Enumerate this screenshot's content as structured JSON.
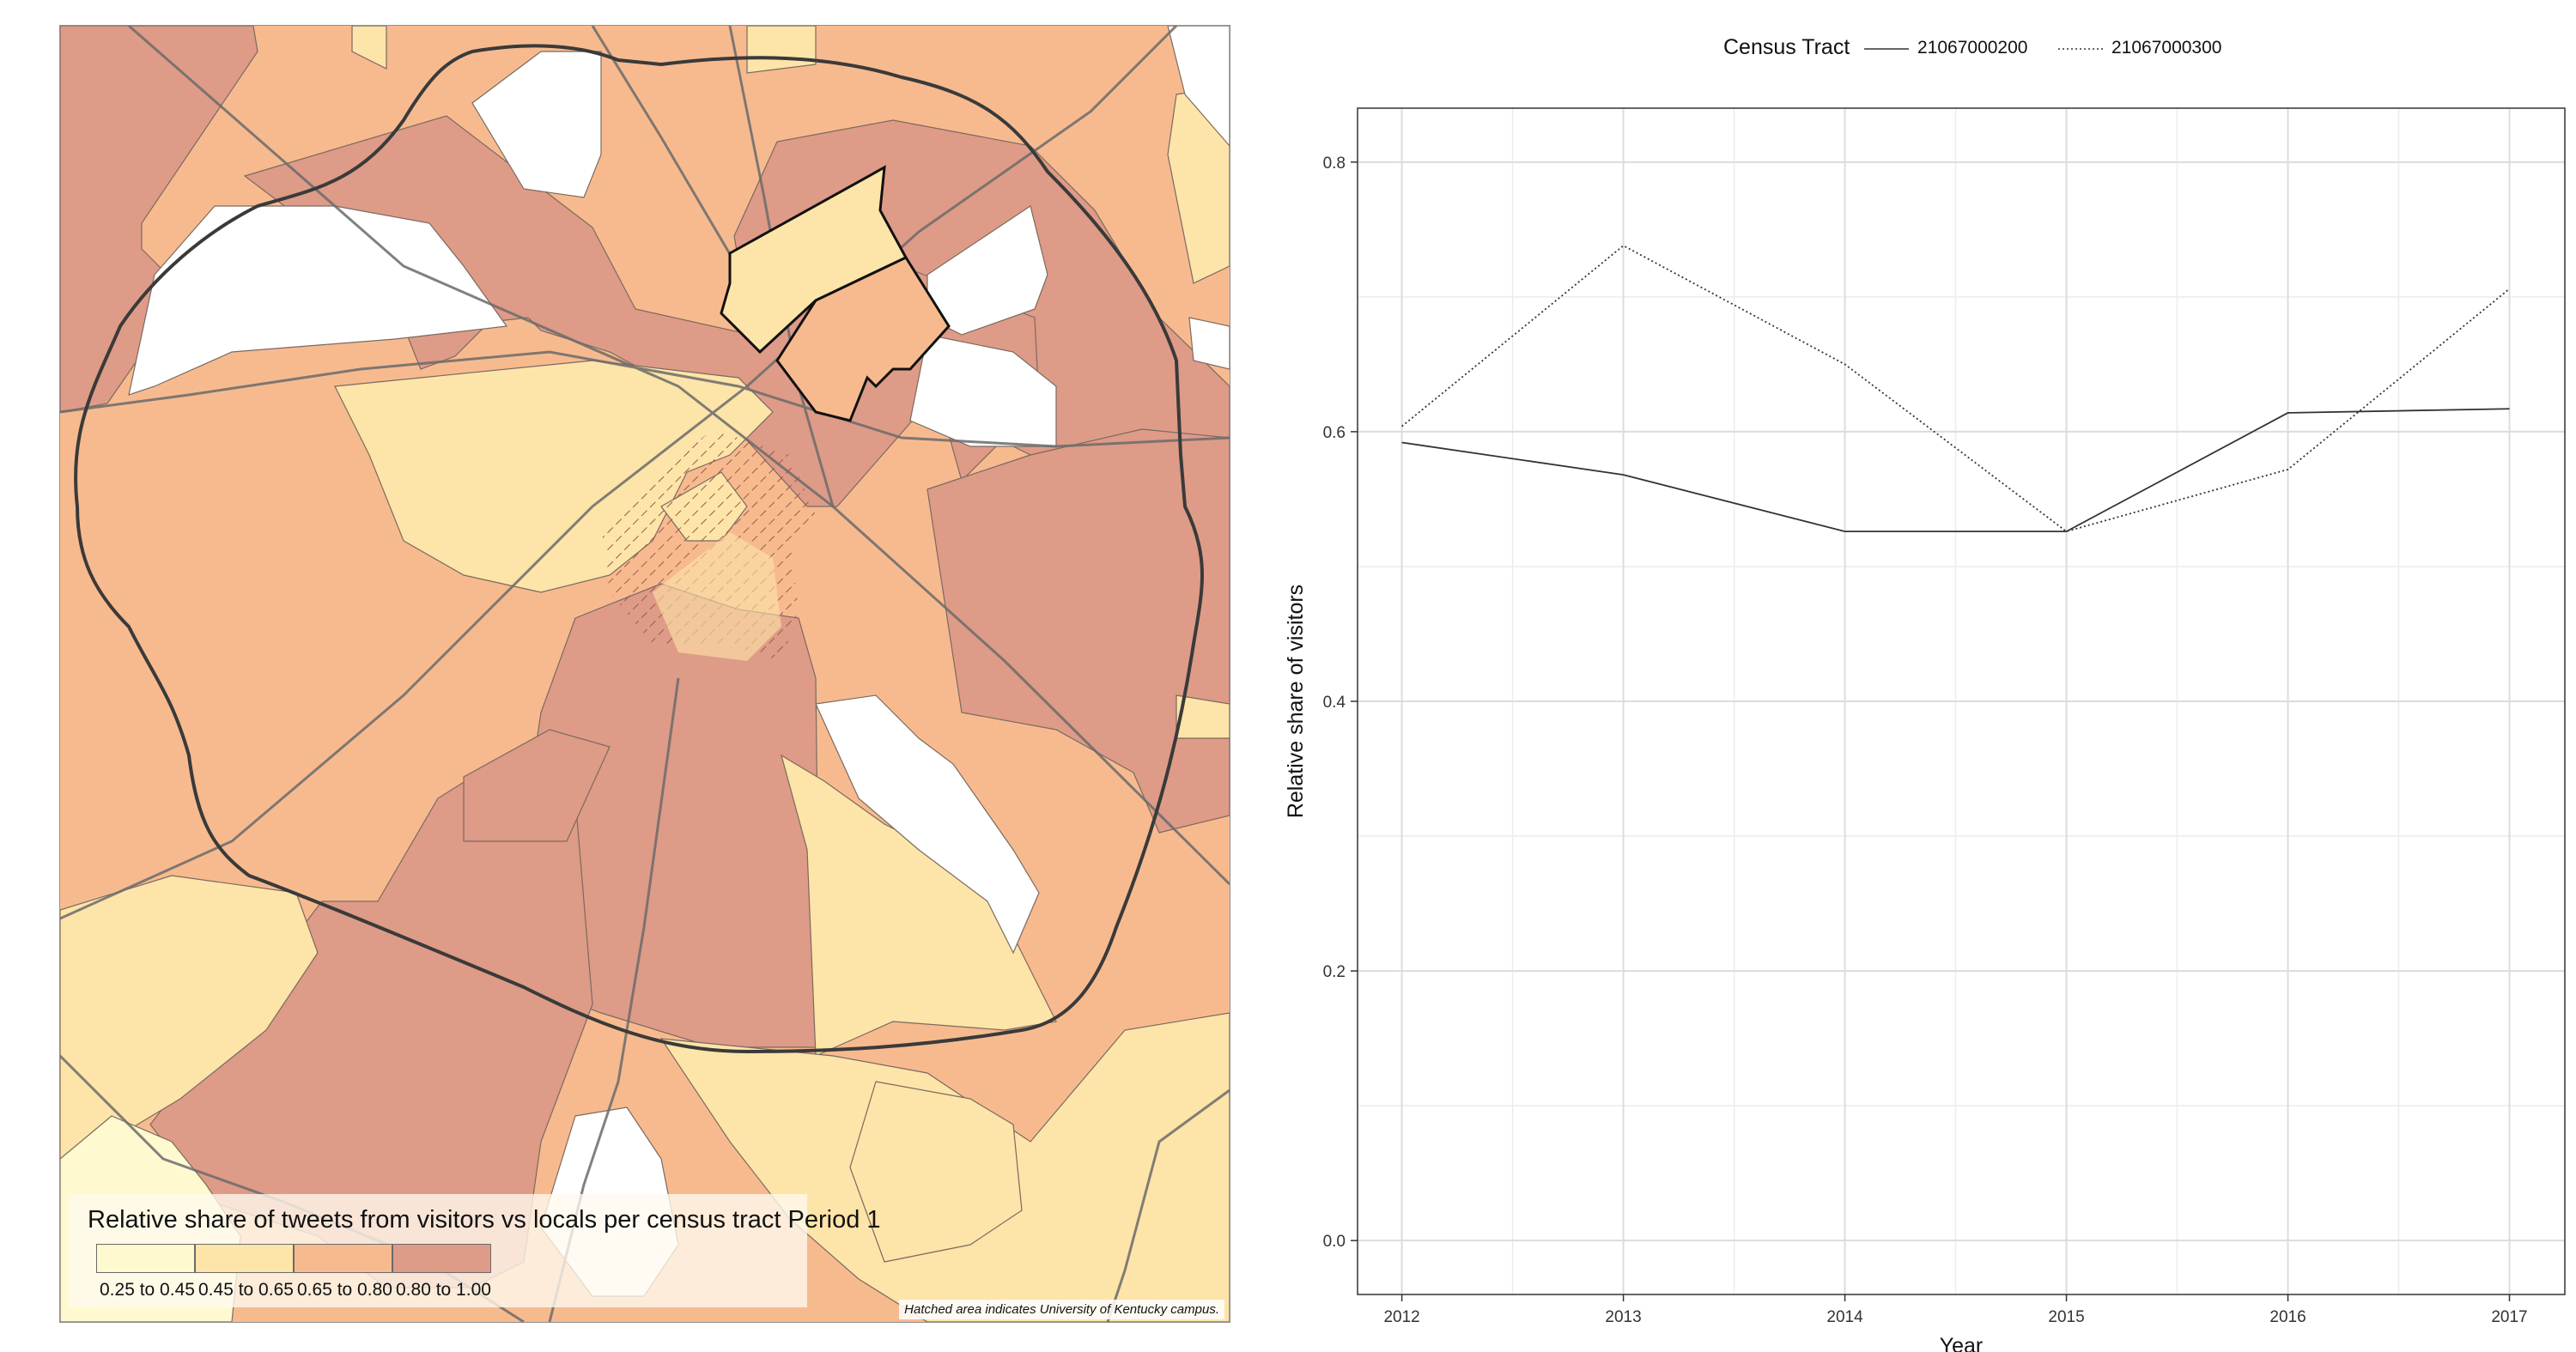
{
  "map": {
    "legend_title": "Relative share of tweets from visitors vs locals per census tract Period 1",
    "classes": [
      {
        "label": "0.25 to 0.45",
        "color": "#fef9cf"
      },
      {
        "label": "0.45 to 0.65",
        "color": "#fde4a8"
      },
      {
        "label": "0.65 to 0.80",
        "color": "#f7ba8f"
      },
      {
        "label": "0.80 to 1.00",
        "color": "#de9b87"
      }
    ],
    "note": "Hatched area indicates University of Kentucky campus."
  },
  "chart_data": {
    "type": "line",
    "title": "",
    "xlabel": "Year",
    "ylabel": "Relative share of visitors",
    "legend_title": "Census Tract",
    "legend_position": "top",
    "x": [
      2012,
      2013,
      2014,
      2015,
      2016,
      2017
    ],
    "xticks": [
      "2012",
      "2013",
      "2014",
      "2015",
      "2016",
      "2017"
    ],
    "yticks": [
      "0.0",
      "0.2",
      "0.4",
      "0.6",
      "0.8"
    ],
    "xlim": [
      2011.8,
      2017.25
    ],
    "ylim": [
      -0.04,
      0.84
    ],
    "grid": true,
    "series": [
      {
        "name": "21067000200",
        "style": "solid",
        "values": [
          0.592,
          0.568,
          0.526,
          0.526,
          0.614,
          0.617
        ]
      },
      {
        "name": "21067000300",
        "style": "dotted",
        "values": [
          0.604,
          0.738,
          0.65,
          0.526,
          0.572,
          0.706
        ]
      }
    ]
  }
}
